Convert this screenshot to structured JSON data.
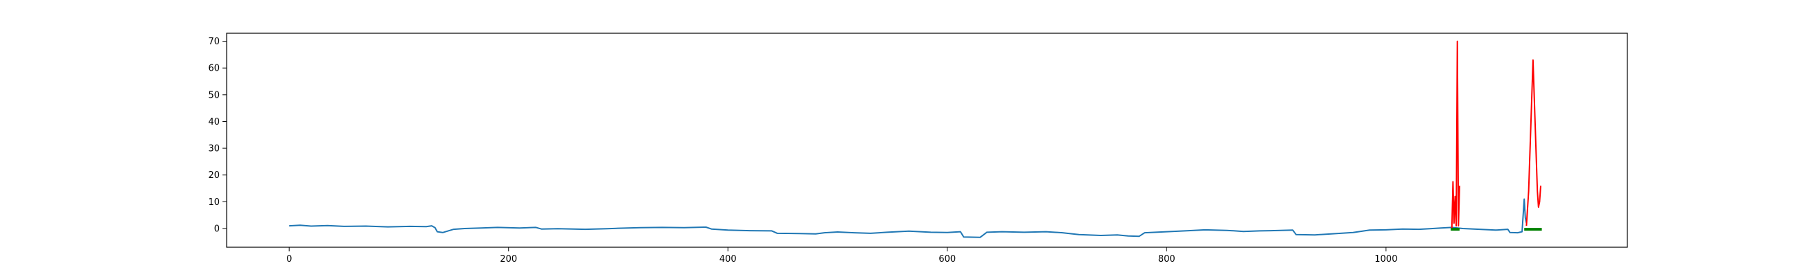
{
  "chart_data": {
    "type": "line",
    "title": "",
    "xlabel": "",
    "ylabel": "",
    "xlim": [
      -57,
      1220
    ],
    "ylim": [
      -7,
      73
    ],
    "grid": false,
    "legend": "none",
    "x_ticks": [
      {
        "value": 0,
        "label": "0"
      },
      {
        "value": 200,
        "label": "200"
      },
      {
        "value": 400,
        "label": "400"
      },
      {
        "value": 600,
        "label": "600"
      },
      {
        "value": 800,
        "label": "800"
      },
      {
        "value": 1000,
        "label": "1000"
      }
    ],
    "y_ticks": [
      {
        "value": 0,
        "label": "0"
      },
      {
        "value": 10,
        "label": "10"
      },
      {
        "value": 20,
        "label": "20"
      },
      {
        "value": 30,
        "label": "30"
      },
      {
        "value": 40,
        "label": "40"
      },
      {
        "value": 50,
        "label": "50"
      },
      {
        "value": 60,
        "label": "60"
      },
      {
        "value": 70,
        "label": "70"
      }
    ],
    "series": [
      {
        "color": "#1f77b4",
        "points": [
          [
            0,
            1.0
          ],
          [
            10,
            1.2
          ],
          [
            20,
            0.9
          ],
          [
            35,
            1.1
          ],
          [
            50,
            0.8
          ],
          [
            70,
            0.9
          ],
          [
            90,
            0.6
          ],
          [
            110,
            0.8
          ],
          [
            125,
            0.7
          ],
          [
            130,
            1.0
          ],
          [
            133,
            0.3
          ],
          [
            135,
            -1.2
          ],
          [
            140,
            -1.5
          ],
          [
            145,
            -0.9
          ],
          [
            150,
            -0.3
          ],
          [
            160,
            0.0
          ],
          [
            175,
            0.2
          ],
          [
            190,
            0.4
          ],
          [
            210,
            0.2
          ],
          [
            225,
            0.4
          ],
          [
            230,
            -0.2
          ],
          [
            245,
            -0.1
          ],
          [
            270,
            -0.3
          ],
          [
            290,
            -0.1
          ],
          [
            300,
            0.1
          ],
          [
            320,
            0.3
          ],
          [
            340,
            0.4
          ],
          [
            360,
            0.3
          ],
          [
            380,
            0.5
          ],
          [
            385,
            -0.2
          ],
          [
            400,
            -0.6
          ],
          [
            420,
            -0.8
          ],
          [
            440,
            -0.9
          ],
          [
            445,
            -1.8
          ],
          [
            465,
            -1.9
          ],
          [
            480,
            -2.0
          ],
          [
            488,
            -1.6
          ],
          [
            500,
            -1.3
          ],
          [
            515,
            -1.6
          ],
          [
            530,
            -1.8
          ],
          [
            545,
            -1.4
          ],
          [
            565,
            -1.0
          ],
          [
            585,
            -1.4
          ],
          [
            600,
            -1.5
          ],
          [
            612,
            -1.2
          ],
          [
            615,
            -3.2
          ],
          [
            630,
            -3.3
          ],
          [
            636,
            -1.4
          ],
          [
            650,
            -1.2
          ],
          [
            670,
            -1.4
          ],
          [
            690,
            -1.2
          ],
          [
            705,
            -1.6
          ],
          [
            720,
            -2.3
          ],
          [
            740,
            -2.6
          ],
          [
            755,
            -2.4
          ],
          [
            765,
            -2.8
          ],
          [
            775,
            -2.9
          ],
          [
            780,
            -1.6
          ],
          [
            800,
            -1.2
          ],
          [
            820,
            -0.8
          ],
          [
            835,
            -0.5
          ],
          [
            855,
            -0.7
          ],
          [
            870,
            -1.1
          ],
          [
            885,
            -0.9
          ],
          [
            895,
            -0.8
          ],
          [
            915,
            -0.6
          ],
          [
            918,
            -2.3
          ],
          [
            935,
            -2.4
          ],
          [
            955,
            -1.9
          ],
          [
            970,
            -1.5
          ],
          [
            985,
            -0.6
          ],
          [
            1000,
            -0.5
          ],
          [
            1015,
            -0.2
          ],
          [
            1030,
            -0.3
          ],
          [
            1040,
            -0.1
          ],
          [
            1050,
            0.2
          ],
          [
            1060,
            0.4
          ],
          [
            1070,
            0.0
          ],
          [
            1080,
            -0.2
          ],
          [
            1090,
            -0.4
          ],
          [
            1100,
            -0.6
          ],
          [
            1111,
            -0.3
          ],
          [
            1113,
            -1.5
          ],
          [
            1120,
            -1.6
          ],
          [
            1124,
            -1.2
          ],
          [
            1126,
            11.0
          ],
          [
            1127,
            4.0
          ],
          [
            1128,
            2.0
          ]
        ]
      },
      {
        "color": "#ff0000",
        "points": [
          [
            1060,
            0
          ],
          [
            1061,
            17.5
          ],
          [
            1062,
            2
          ],
          [
            1063,
            12
          ],
          [
            1064,
            1
          ],
          [
            1065,
            70
          ],
          [
            1066,
            1
          ],
          [
            1067,
            16
          ]
        ]
      },
      {
        "color": "#ff0000",
        "points": [
          [
            1128,
            1
          ],
          [
            1130,
            14
          ],
          [
            1132,
            38
          ],
          [
            1134,
            63
          ],
          [
            1136,
            38
          ],
          [
            1138,
            14
          ],
          [
            1139,
            8
          ],
          [
            1140,
            10
          ],
          [
            1141,
            16
          ]
        ]
      },
      {
        "color": "#008000",
        "points": [
          [
            1059,
            -0.3
          ],
          [
            1067,
            -0.3
          ]
        ]
      },
      {
        "color": "#008000",
        "points": [
          [
            1126,
            -0.3
          ],
          [
            1142,
            -0.3
          ]
        ]
      }
    ]
  }
}
